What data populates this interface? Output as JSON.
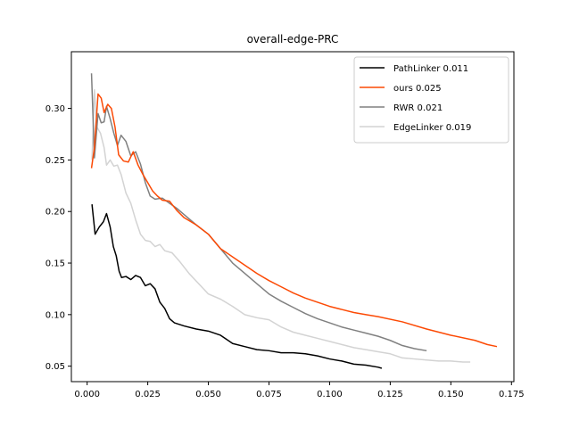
{
  "chart_data": {
    "type": "line",
    "title": "overall-edge-PRC",
    "xlabel": "",
    "ylabel": "",
    "xlim": [
      -0.0065,
      0.176
    ],
    "ylim": [
      0.035,
      0.355
    ],
    "xticks": [
      0.0,
      0.025,
      0.05,
      0.075,
      0.1,
      0.125,
      0.15,
      0.175
    ],
    "xtick_labels": [
      "0.000",
      "0.025",
      "0.050",
      "0.075",
      "0.100",
      "0.125",
      "0.150",
      "0.175"
    ],
    "yticks": [
      0.05,
      0.1,
      0.15,
      0.2,
      0.25,
      0.3
    ],
    "ytick_labels": [
      "0.05",
      "0.10",
      "0.15",
      "0.20",
      "0.25",
      "0.30"
    ],
    "grid": false,
    "legend_position": "top-right",
    "series": [
      {
        "name": "PathLinker 0.011",
        "color": "#000000",
        "x": [
          0.002,
          0.0033,
          0.005,
          0.0067,
          0.008,
          0.0095,
          0.0108,
          0.012,
          0.0132,
          0.0142,
          0.016,
          0.018,
          0.02,
          0.022,
          0.024,
          0.026,
          0.028,
          0.03,
          0.032,
          0.034,
          0.036,
          0.04,
          0.045,
          0.05,
          0.055,
          0.06,
          0.065,
          0.07,
          0.075,
          0.08,
          0.085,
          0.09,
          0.095,
          0.1,
          0.105,
          0.11,
          0.115,
          0.12,
          0.1215
        ],
        "y": [
          0.207,
          0.178,
          0.185,
          0.19,
          0.198,
          0.185,
          0.166,
          0.157,
          0.142,
          0.136,
          0.137,
          0.134,
          0.138,
          0.136,
          0.128,
          0.13,
          0.125,
          0.112,
          0.106,
          0.096,
          0.092,
          0.089,
          0.086,
          0.084,
          0.08,
          0.072,
          0.069,
          0.066,
          0.065,
          0.063,
          0.063,
          0.062,
          0.06,
          0.057,
          0.055,
          0.052,
          0.051,
          0.049,
          0.048
        ]
      },
      {
        "name": "ours 0.025",
        "color": "#fc4a05",
        "x": [
          0.0018,
          0.003,
          0.0045,
          0.0058,
          0.007,
          0.0085,
          0.01,
          0.0115,
          0.013,
          0.015,
          0.017,
          0.019,
          0.021,
          0.023,
          0.025,
          0.027,
          0.029,
          0.031,
          0.034,
          0.037,
          0.04,
          0.045,
          0.05,
          0.055,
          0.06,
          0.065,
          0.07,
          0.075,
          0.08,
          0.085,
          0.09,
          0.095,
          0.1,
          0.105,
          0.11,
          0.115,
          0.12,
          0.13,
          0.14,
          0.15,
          0.16,
          0.165,
          0.169
        ],
        "y": [
          0.242,
          0.262,
          0.314,
          0.31,
          0.296,
          0.304,
          0.3,
          0.282,
          0.255,
          0.249,
          0.248,
          0.258,
          0.245,
          0.236,
          0.228,
          0.22,
          0.215,
          0.211,
          0.21,
          0.201,
          0.194,
          0.187,
          0.178,
          0.164,
          0.156,
          0.148,
          0.14,
          0.133,
          0.127,
          0.121,
          0.116,
          0.112,
          0.108,
          0.105,
          0.102,
          0.1,
          0.098,
          0.093,
          0.086,
          0.08,
          0.075,
          0.071,
          0.069
        ]
      },
      {
        "name": "RWR 0.021",
        "color": "#808080",
        "x": [
          0.0018,
          0.003,
          0.0045,
          0.0058,
          0.007,
          0.008,
          0.0095,
          0.011,
          0.0125,
          0.014,
          0.016,
          0.018,
          0.02,
          0.022,
          0.024,
          0.026,
          0.028,
          0.031,
          0.034,
          0.037,
          0.04,
          0.045,
          0.05,
          0.055,
          0.06,
          0.065,
          0.07,
          0.075,
          0.08,
          0.085,
          0.09,
          0.095,
          0.1,
          0.105,
          0.11,
          0.115,
          0.12,
          0.125,
          0.13,
          0.135,
          0.14
        ],
        "y": [
          0.334,
          0.252,
          0.295,
          0.286,
          0.287,
          0.302,
          0.29,
          0.276,
          0.264,
          0.274,
          0.268,
          0.254,
          0.258,
          0.246,
          0.228,
          0.215,
          0.212,
          0.213,
          0.208,
          0.203,
          0.197,
          0.187,
          0.178,
          0.164,
          0.15,
          0.14,
          0.13,
          0.12,
          0.113,
          0.107,
          0.101,
          0.096,
          0.092,
          0.088,
          0.085,
          0.082,
          0.079,
          0.075,
          0.07,
          0.067,
          0.065
        ]
      },
      {
        "name": "EdgeLinker 0.019",
        "color": "#d3d3d3",
        "x": [
          0.002,
          0.003,
          0.004,
          0.0055,
          0.007,
          0.008,
          0.0095,
          0.011,
          0.0125,
          0.014,
          0.016,
          0.018,
          0.02,
          0.022,
          0.024,
          0.026,
          0.028,
          0.03,
          0.032,
          0.035,
          0.038,
          0.042,
          0.046,
          0.05,
          0.055,
          0.06,
          0.065,
          0.07,
          0.075,
          0.08,
          0.085,
          0.09,
          0.095,
          0.1,
          0.105,
          0.11,
          0.115,
          0.12,
          0.125,
          0.13,
          0.135,
          0.14,
          0.145,
          0.15,
          0.155,
          0.158
        ],
        "y": [
          0.25,
          0.318,
          0.282,
          0.276,
          0.262,
          0.245,
          0.25,
          0.244,
          0.245,
          0.236,
          0.218,
          0.208,
          0.192,
          0.178,
          0.172,
          0.171,
          0.166,
          0.168,
          0.162,
          0.16,
          0.152,
          0.14,
          0.13,
          0.12,
          0.115,
          0.108,
          0.1,
          0.097,
          0.095,
          0.088,
          0.083,
          0.08,
          0.077,
          0.074,
          0.071,
          0.068,
          0.066,
          0.064,
          0.062,
          0.058,
          0.057,
          0.056,
          0.055,
          0.055,
          0.054,
          0.054
        ]
      }
    ]
  }
}
